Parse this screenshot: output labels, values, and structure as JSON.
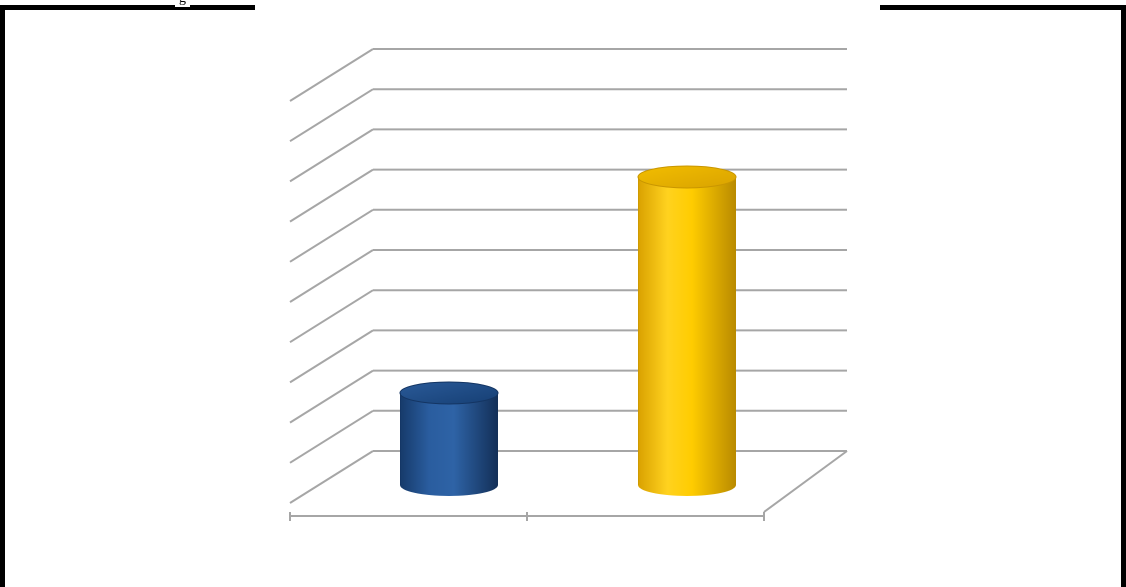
{
  "page": {
    "top_label": "g"
  },
  "colors": {
    "frame": "#000000",
    "gridline": "#a6a6a6",
    "blue_bar": "#1f4e8c",
    "gold_bar": "#ffc000"
  },
  "chart_data": {
    "type": "bar",
    "style": "3d-cylinder",
    "categories": [
      "",
      ""
    ],
    "values": [
      2.3,
      7.7
    ],
    "bar_colors": [
      "#1f4e8c",
      "#ffc000"
    ],
    "title": "",
    "xlabel": "",
    "ylabel": "",
    "ylim": [
      0,
      10
    ],
    "gridlines": 11,
    "grid": true,
    "legend": "none"
  }
}
